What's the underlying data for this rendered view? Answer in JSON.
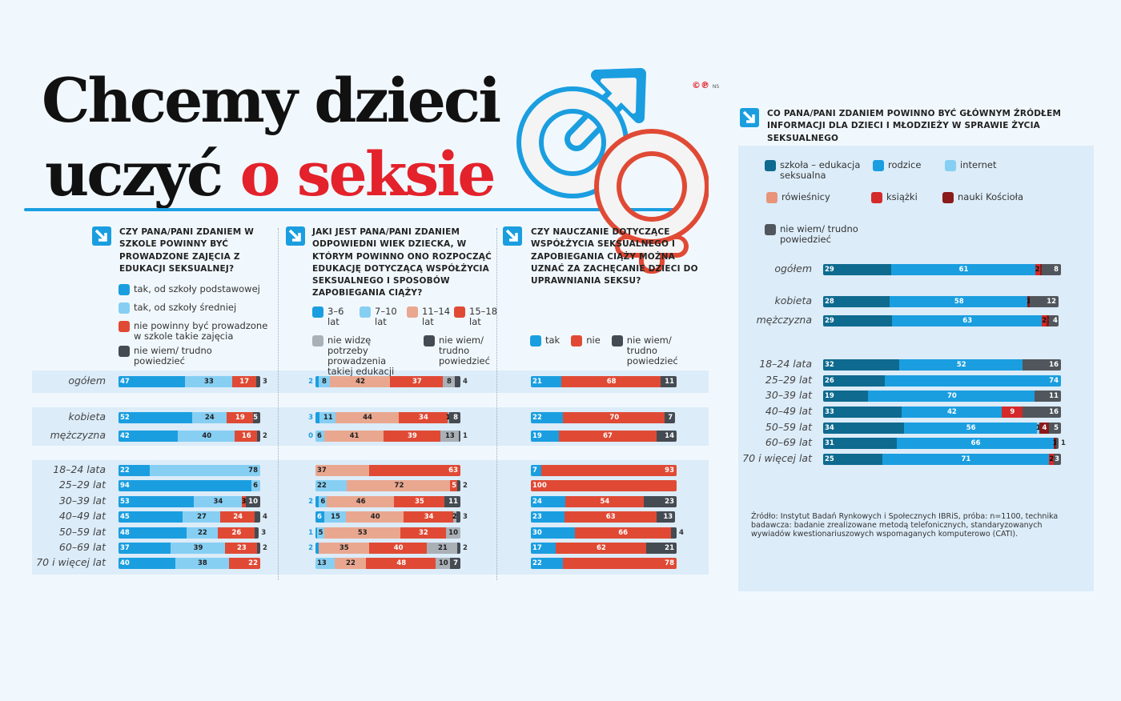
{
  "title": {
    "line1": "Chcemy dzieci",
    "line2a": "uczyć",
    "line2b": "o seksie"
  },
  "credit": {
    "logo": "©℗",
    "initials": "NS"
  },
  "colors": {
    "accent_blue": "#1a9ee0",
    "accent_red": "#e3222b"
  },
  "source": "Źródło: Instytut Badań Rynkowych i Społecznych IBRiS, próba: n=1100, technika badawcza: badanie zrealizowane metodą telefonicznych, standaryzowanych wywiadów kwestionariuszowych wspomaganych komputerowo (CATI).",
  "chart_data": [
    {
      "type": "bar",
      "stacked": true,
      "orientation": "horizontal",
      "unit": "%",
      "title": "Czy Pana/Pani zdaniem w szkole powinny być prowadzone zajęcia z edukacji seksualnej?",
      "categories": [
        "ogółem",
        "kobieta",
        "mężczyzna",
        "18–24 lata",
        "25–29 lat",
        "30–39 lat",
        "40–49 lat",
        "50–59 lat",
        "60–69 lat",
        "70 i więcej lat"
      ],
      "series": [
        {
          "name": "tak, od szkoły podstawowej",
          "color": "#1a9ee0",
          "values": [
            47,
            52,
            42,
            22,
            94,
            53,
            45,
            48,
            37,
            40
          ]
        },
        {
          "name": "tak, od szkoły średniej",
          "color": "#86cff3",
          "values": [
            33,
            24,
            40,
            78,
            6,
            34,
            27,
            22,
            39,
            38
          ]
        },
        {
          "name": "nie powinny być prowadzone w szkole takie zajęcia",
          "color": "#e04a35",
          "values": [
            17,
            19,
            16,
            0,
            0,
            3,
            24,
            26,
            23,
            22
          ]
        },
        {
          "name": "nie wiem/ trudno powiedzieć",
          "color": "#454b52",
          "values": [
            3,
            5,
            2,
            0,
            0,
            10,
            4,
            3,
            2,
            0
          ]
        }
      ]
    },
    {
      "type": "bar",
      "stacked": true,
      "orientation": "horizontal",
      "unit": "%",
      "title": "Jaki jest Pana/Pani zdaniem odpowiedni wiek dziecka, w którym powinno ono rozpocząć edukację dotyczącą współżycia seksualnego i sposobów zapobiegania ciąży?",
      "categories": [
        "ogółem",
        "kobieta",
        "mężczyzna",
        "18–24 lata",
        "25–29 lat",
        "30–39 lat",
        "40–49 lat",
        "50–59 lat",
        "60–69 lat",
        "70 i więcej lat"
      ],
      "series": [
        {
          "name": "3–6 lat",
          "color": "#1a9ee0",
          "values": [
            2,
            3,
            0,
            0,
            0,
            2,
            6,
            1,
            2,
            0
          ]
        },
        {
          "name": "7–10 lat",
          "color": "#86cff3",
          "values": [
            8,
            11,
            6,
            0,
            22,
            6,
            15,
            5,
            0,
            13
          ]
        },
        {
          "name": "11–14 lat",
          "color": "#eaa78f",
          "values": [
            42,
            44,
            41,
            37,
            72,
            46,
            40,
            53,
            35,
            22
          ]
        },
        {
          "name": "15–18 lat",
          "color": "#e04a35",
          "values": [
            37,
            34,
            39,
            63,
            5,
            35,
            34,
            32,
            40,
            48
          ]
        },
        {
          "name": "nie widzę potrzeby prowadzenia takiej edukacji",
          "color": "#a9b0b6",
          "values": [
            8,
            1,
            13,
            0,
            0,
            0,
            2,
            10,
            21,
            10
          ]
        },
        {
          "name": "nie wiem/ trudno powiedzieć",
          "color": "#454b52",
          "values": [
            4,
            8,
            1,
            0,
            2,
            11,
            3,
            0,
            2,
            7
          ]
        }
      ]
    },
    {
      "type": "bar",
      "stacked": true,
      "orientation": "horizontal",
      "unit": "%",
      "title": "Czy nauczanie dotyczące współżycia seksualnego i zapobiegania ciąży można uznać za zachęcanie dzieci do uprawniania seksu?",
      "categories": [
        "ogółem",
        "kobieta",
        "mężczyzna",
        "18–24 lata",
        "25–29 lat",
        "30–39 lat",
        "40–49 lat",
        "50–59 lat",
        "60–69 lat",
        "70 i więcej lat"
      ],
      "series": [
        {
          "name": "tak",
          "color": "#1a9ee0",
          "values": [
            21,
            22,
            19,
            7,
            0,
            24,
            23,
            30,
            17,
            22
          ]
        },
        {
          "name": "nie",
          "color": "#e04a35",
          "values": [
            68,
            70,
            67,
            93,
            100,
            54,
            63,
            66,
            62,
            78
          ]
        },
        {
          "name": "nie wiem/ trudno powiedzieć",
          "color": "#454b52",
          "values": [
            11,
            7,
            14,
            0,
            0,
            23,
            13,
            4,
            21,
            0
          ]
        }
      ]
    },
    {
      "type": "bar",
      "stacked": true,
      "orientation": "horizontal",
      "unit": "%",
      "title": "Co Pana/Pani zdaniem powinno być głównym źródłem informacji dla dzieci i młodzieży w sprawie życia seksualnego",
      "categories": [
        "ogółem",
        "kobieta",
        "mężczyzna",
        "18–24 lata",
        "25–29 lat",
        "30–39 lat",
        "40–49 lat",
        "50–59 lat",
        "60–69 lat",
        "70 i więcej lat"
      ],
      "series": [
        {
          "name": "szkoła – edukacja seksualna",
          "color": "#0e6a8e",
          "values": [
            29,
            28,
            29,
            32,
            26,
            19,
            33,
            34,
            31,
            25
          ]
        },
        {
          "name": "rodzice",
          "color": "#1a9ee0",
          "values": [
            61,
            58,
            63,
            52,
            74,
            70,
            42,
            56,
            66,
            71
          ]
        },
        {
          "name": "internet",
          "color": "#86cff3",
          "values": [
            0,
            0,
            0,
            0,
            0,
            0,
            0,
            1,
            0,
            0
          ]
        },
        {
          "name": "rówieśnicy",
          "color": "#e8947a",
          "values": [
            0,
            0,
            0,
            0,
            0,
            0,
            0,
            0,
            0,
            0
          ]
        },
        {
          "name": "książki",
          "color": "#d42a2a",
          "values": [
            2,
            0,
            2,
            0,
            0,
            0,
            9,
            0,
            0,
            2
          ]
        },
        {
          "name": "nauki Kościoła",
          "color": "#8b1a1a",
          "values": [
            1,
            1,
            1,
            0,
            0,
            0,
            0,
            4,
            1,
            0
          ]
        },
        {
          "name": "nie wiem/ trudno powiedzieć",
          "color": "#50565c",
          "values": [
            8,
            12,
            4,
            16,
            0,
            11,
            16,
            5,
            1,
            3
          ]
        }
      ]
    }
  ]
}
